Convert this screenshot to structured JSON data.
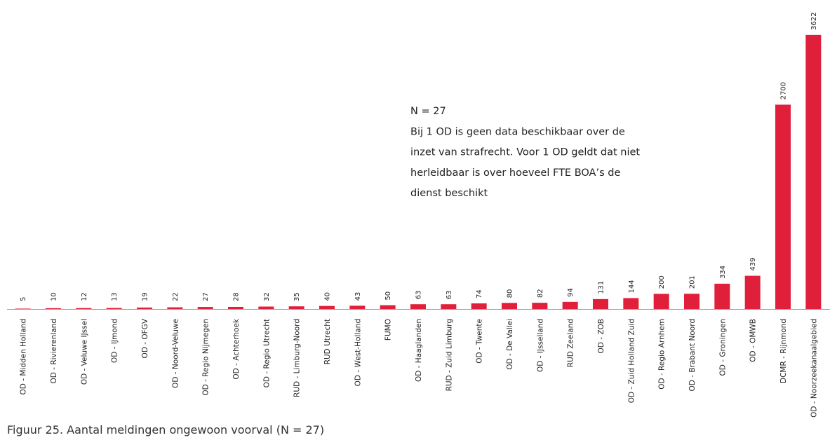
{
  "chart_data": {
    "type": "bar",
    "caption": "Figuur 25. Aantal meldingen ongewoon voorval (N = 27)",
    "annotation": [
      "N = 27",
      "Bij 1 OD is geen data beschikbaar over de",
      "inzet van strafrecht. Voor 1 OD geldt dat niet",
      "herleidbaar is over hoeveel FTE BOA’s de",
      "dienst beschikt"
    ],
    "categories": [
      "OD - Midden Holland",
      "OD - Rivierenland",
      "OD - Veluwe IJssel",
      "OD - IJmond",
      "OD - OFGV",
      "OD - Noord-Veluwe",
      "OD - Regio Nijmegen",
      "OD - Achterhoek",
      "OD - Regio Utrecht",
      "RUD - Limburg-Noord",
      "RUD Utrecht",
      "OD - West-Holland",
      "FUMO",
      "OD - Haaglanden",
      "RUD - Zuid Limburg",
      "OD - Twente",
      "OD - De Vallei",
      "OD - IJsselland",
      "RUD Zeeland",
      "OD - ZOB",
      "OD - Zuid Holland Zuid",
      "OD - Regio Arnhem",
      "OD - Brabant Noord",
      "OD - Groningen",
      "OD - OMWB",
      "DCMR - Rijnmond",
      "OD - Noorzeekanaalgebied"
    ],
    "values": [
      5,
      10,
      12,
      13,
      19,
      22,
      27,
      28,
      32,
      35,
      40,
      43,
      50,
      63,
      63,
      74,
      80,
      82,
      94,
      131,
      144,
      200,
      201,
      334,
      439,
      2700,
      3622
    ],
    "color": "#e0203a",
    "ylim": [
      0,
      4000
    ]
  }
}
